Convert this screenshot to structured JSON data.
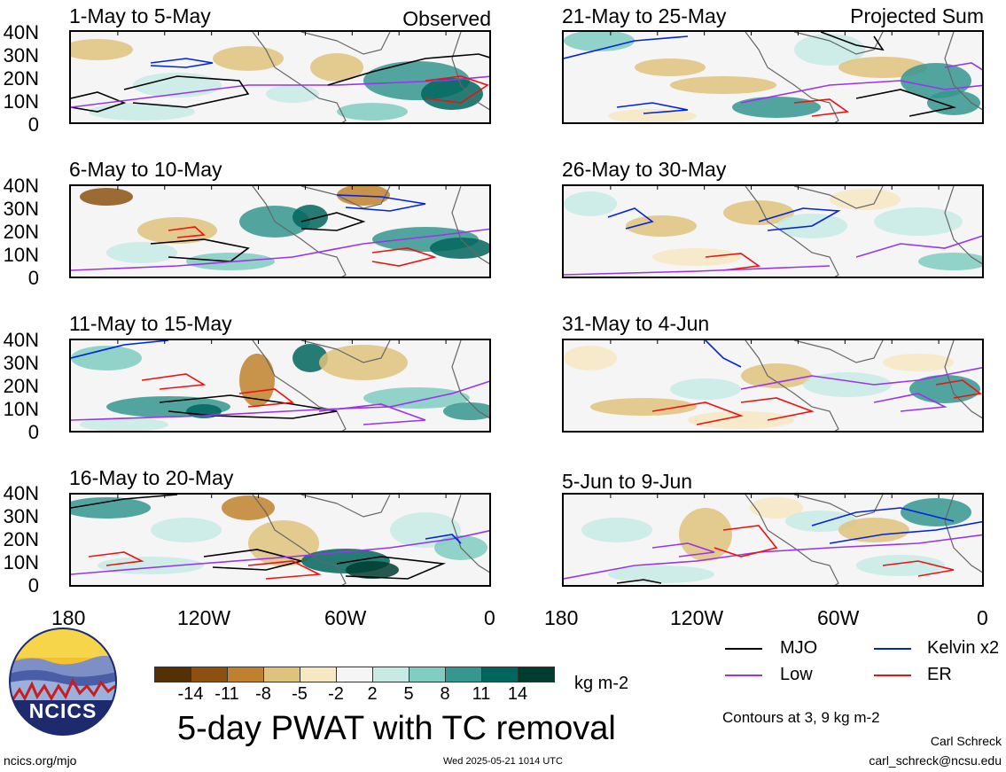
{
  "panels": [
    {
      "title": "1-May to 5-May",
      "tag": "Observed"
    },
    {
      "title": "6-May to 10-May",
      "tag": ""
    },
    {
      "title": "11-May to 15-May",
      "tag": ""
    },
    {
      "title": "16-May to 20-May",
      "tag": ""
    },
    {
      "title": "21-May to 25-May",
      "tag": "Projected Sum"
    },
    {
      "title": "26-May to 30-May",
      "tag": ""
    },
    {
      "title": "31-May to 4-Jun",
      "tag": ""
    },
    {
      "title": "5-Jun to 9-Jun",
      "tag": ""
    }
  ],
  "lat_ticks": [
    "40N",
    "30N",
    "20N",
    "10N",
    "0"
  ],
  "lon_ticks": [
    "180",
    "120W",
    "60W",
    "0"
  ],
  "colorbar": {
    "labels": [
      "-14",
      "-11",
      "-8",
      "-5",
      "-2",
      "2",
      "5",
      "8",
      "11",
      "14"
    ],
    "colors": [
      "#543005",
      "#8c5110",
      "#bf812d",
      "#dfc27d",
      "#f6e8c3",
      "#f5f5f5",
      "#c7eae5",
      "#80cdc1",
      "#35978f",
      "#01665e",
      "#003c30"
    ],
    "units": "kg m-2"
  },
  "legend": {
    "items": [
      {
        "label": "MJO",
        "color": "#000000"
      },
      {
        "label": "Kelvin x2",
        "color": "#0022dd"
      },
      {
        "label": "Low",
        "color": "#9933ee"
      },
      {
        "label": "ER",
        "color": "#ee1111"
      }
    ],
    "contours_note": "Contours at 3, 9 kg m-2"
  },
  "main_title": "5-day PWAT with TC removal",
  "logo_text": "NCICS",
  "footer": {
    "left": "ncics.org/mjo",
    "center": "Wed 2025-05-21 1014 UTC",
    "author": "Carl Schreck",
    "email": "carl_schreck@ncsu.edu"
  }
}
